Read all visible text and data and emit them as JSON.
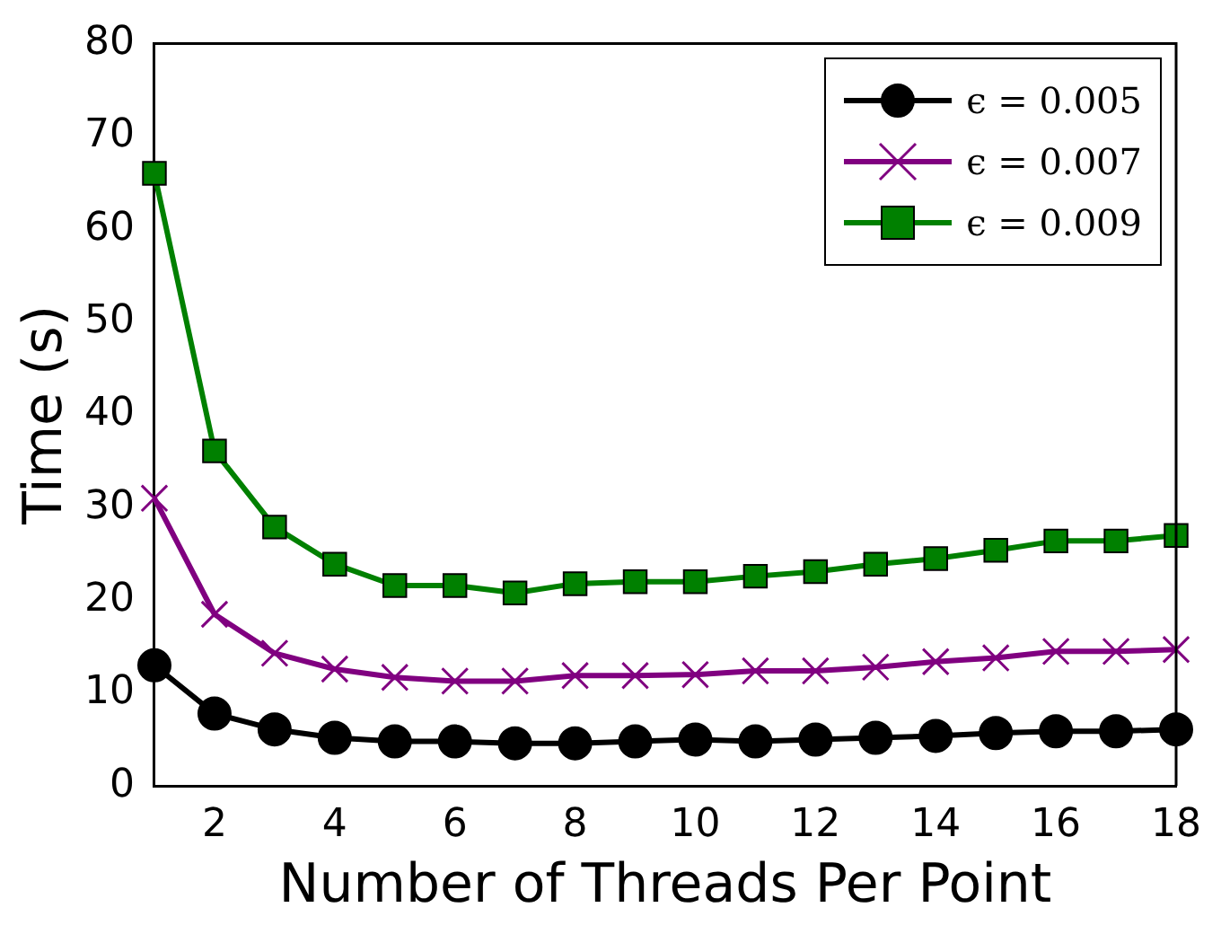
{
  "chart_data": {
    "type": "line",
    "xlabel": "Number of Threads Per Point",
    "ylabel": "Time (s)",
    "x": [
      1,
      2,
      3,
      4,
      5,
      6,
      7,
      8,
      9,
      10,
      11,
      12,
      13,
      14,
      15,
      16,
      17,
      18
    ],
    "xlim": [
      1,
      18
    ],
    "xticks": [
      2,
      4,
      6,
      8,
      10,
      12,
      14,
      16,
      18
    ],
    "ylim": [
      0,
      80
    ],
    "yticks": [
      0,
      10,
      20,
      30,
      40,
      50,
      60,
      70,
      80
    ],
    "grid": false,
    "legend": "top right",
    "series": [
      {
        "name": "ϵ = 0.005",
        "color": "#000000",
        "marker": "circle",
        "values": [
          13,
          7.8,
          6.1,
          5.2,
          4.8,
          4.8,
          4.6,
          4.6,
          4.8,
          5,
          4.8,
          5,
          5.2,
          5.4,
          5.7,
          5.9,
          5.9,
          6.1
        ]
      },
      {
        "name": "ϵ = 0.007",
        "color": "#800080",
        "marker": "cross",
        "values": [
          31,
          18.5,
          14.3,
          12.6,
          11.7,
          11.3,
          11.3,
          11.9,
          11.9,
          12,
          12.4,
          12.4,
          12.8,
          13.4,
          13.8,
          14.5,
          14.5,
          14.7
        ]
      },
      {
        "name": "ϵ = 0.009",
        "color": "#008000",
        "marker": "square",
        "values": [
          66,
          36.1,
          27.9,
          23.9,
          21.6,
          21.6,
          20.8,
          21.8,
          22,
          22,
          22.6,
          23.1,
          23.9,
          24.5,
          25.4,
          26.4,
          26.4,
          27
        ]
      }
    ]
  }
}
